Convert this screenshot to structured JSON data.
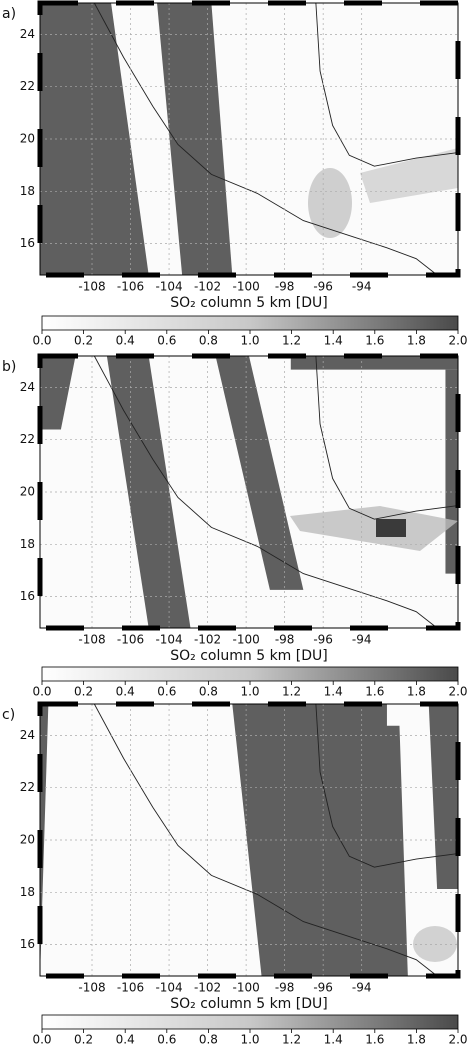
{
  "panels": [
    {
      "label": "a)",
      "xlim": [
        -110.7,
        -89
      ],
      "ylim": [
        14.8,
        25.2
      ],
      "xticks": [
        -108,
        -106,
        -104,
        -102,
        -100,
        -98,
        -96,
        -94
      ],
      "yticks": [
        16,
        18,
        20,
        22,
        24
      ],
      "xlabel": "SO₂ column 5 km [DU]",
      "colorbar": {
        "lim": [
          0,
          2
        ],
        "ticks": [
          {
            "value": 0,
            "label": "0.0"
          },
          0.2,
          0.4,
          0.6,
          0.8,
          {
            "value": 1,
            "label": "1.0"
          },
          1.2,
          1.4,
          1.6,
          1.8,
          {
            "value": 2,
            "label": "2.0"
          }
        ]
      }
    },
    {
      "label": "b)",
      "xlim": [
        -110.7,
        -89
      ],
      "ylim": [
        14.8,
        25.2
      ],
      "xticks": [
        -108,
        -106,
        -104,
        -102,
        -100,
        -98,
        -96,
        -94
      ],
      "yticks": [
        16,
        18,
        20,
        22,
        24
      ],
      "xlabel": "SO₂ column 5 km [DU]",
      "colorbar": {
        "lim": [
          0,
          2
        ],
        "ticks": [
          {
            "value": 0,
            "label": "0.0"
          },
          0.2,
          0.4,
          0.6,
          0.8,
          {
            "value": 1,
            "label": "1.0"
          },
          1.2,
          1.4,
          1.6,
          1.8,
          {
            "value": 2,
            "label": "2.0"
          }
        ]
      }
    },
    {
      "label": "c)",
      "xlim": [
        -110.7,
        -89
      ],
      "ylim": [
        14.8,
        25.2
      ],
      "xticks": [
        -108,
        -106,
        -104,
        -102,
        -100,
        -98,
        -96,
        -94
      ],
      "yticks": [
        16,
        18,
        20,
        22,
        24
      ],
      "xlabel": "SO₂ column 5 km [DU]",
      "colorbar": {
        "lim": [
          0,
          2
        ],
        "ticks": [
          {
            "value": 0,
            "label": "0.0"
          },
          0.2,
          0.4,
          0.6,
          0.8,
          {
            "value": 1,
            "label": "1.0"
          },
          1.2,
          1.4,
          1.6,
          1.8,
          {
            "value": 2,
            "label": "2.0"
          }
        ]
      }
    }
  ]
}
